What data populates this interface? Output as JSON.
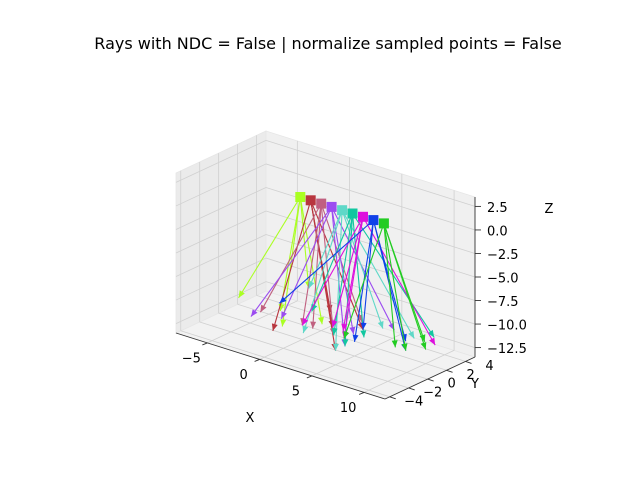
{
  "chart_data": {
    "type": "3d-line",
    "title": "Rays with NDC = False | normalize sampled points = False",
    "xlabel": "X",
    "ylabel": "Y",
    "zlabel": "Z",
    "xlim": [
      -8,
      12
    ],
    "ylim": [
      -4.5,
      5
    ],
    "zlim": [
      -13.5,
      3.5
    ],
    "x_ticks": [
      -5,
      0,
      5,
      10
    ],
    "y_ticks": [
      -4,
      -2,
      0,
      2,
      4
    ],
    "z_ticks": [
      2.5,
      0.0,
      -2.5,
      -5.0,
      -7.5,
      -10.0,
      -12.5
    ],
    "x_tick_labels": [
      "−5",
      "0",
      "5",
      "10"
    ],
    "y_tick_labels": [
      "−4",
      "−2",
      "0",
      "2",
      "4"
    ],
    "z_tick_labels": [
      "2.5",
      "0.0",
      "−2.5",
      "−5.0",
      "−7.5",
      "−10.0",
      "−12.5"
    ],
    "grid": true,
    "cameras": [
      {
        "color": "#aaff22",
        "origin": [
          -2,
          2,
          0
        ],
        "rays": [
          [
            -7,
            1,
            -12
          ],
          [
            -3,
            1,
            -12
          ],
          [
            1,
            1,
            -12
          ],
          [
            -1,
            -1,
            -12
          ],
          [
            -3,
            4,
            -11
          ]
        ]
      },
      {
        "color": "#b8363f",
        "origin": [
          -1,
          2,
          0
        ],
        "rays": [
          [
            -1,
            -2,
            -12
          ],
          [
            4,
            2,
            -12
          ],
          [
            5,
            -2,
            -12
          ],
          [
            0,
            3,
            -12
          ],
          [
            2,
            1,
            -12
          ]
        ]
      },
      {
        "color": "#c06080",
        "origin": [
          0,
          2,
          0
        ],
        "rays": [
          [
            -4,
            0,
            -12
          ],
          [
            1,
            0,
            -12
          ],
          [
            3,
            3,
            -12
          ],
          [
            0,
            0,
            -12
          ],
          [
            3,
            0,
            -12
          ]
        ]
      },
      {
        "color": "#9b4cf0",
        "origin": [
          1,
          2,
          0
        ],
        "rays": [
          [
            -2,
            0,
            -12
          ],
          [
            7,
            2,
            -11
          ],
          [
            4,
            1,
            -12
          ],
          [
            5,
            -1,
            -12
          ],
          [
            -4,
            -1,
            -12
          ]
        ]
      },
      {
        "color": "#5fd8c8",
        "origin": [
          2,
          2,
          0
        ],
        "rays": [
          [
            5,
            -2,
            -12
          ],
          [
            8,
            3,
            -12
          ],
          [
            -3,
            4,
            -11
          ],
          [
            1,
            -1,
            -12
          ],
          [
            5,
            3,
            -12
          ]
        ]
      },
      {
        "color": "#12c7a0",
        "origin": [
          3,
          2,
          0
        ],
        "rays": [
          [
            0,
            1,
            -11
          ],
          [
            9,
            4,
            -12
          ],
          [
            5,
            1,
            -12
          ],
          [
            5,
            -1,
            -12
          ],
          [
            3,
            0,
            -12
          ]
        ]
      },
      {
        "color": "#dd10dd",
        "origin": [
          4,
          2,
          0
        ],
        "rays": [
          [
            0,
            0,
            -12
          ],
          [
            4,
            0,
            -12
          ],
          [
            3,
            1,
            -12
          ],
          [
            10,
            3,
            -12
          ],
          [
            2,
            1,
            -12
          ]
        ]
      },
      {
        "color": "#1040e8",
        "origin": [
          5,
          2,
          0
        ],
        "rays": [
          [
            -4,
            2,
            -12
          ],
          [
            9,
            1,
            -12
          ],
          [
            9,
            1,
            -11
          ],
          [
            4,
            2,
            -12
          ],
          [
            5,
            0,
            -12
          ]
        ]
      },
      {
        "color": "#22cc22",
        "origin": [
          6,
          2,
          0
        ],
        "rays": [
          [
            9,
            3,
            -12
          ],
          [
            9,
            1,
            -12
          ],
          [
            8,
            1,
            -12
          ],
          [
            4,
            0,
            -12
          ],
          [
            10,
            2,
            -12
          ]
        ]
      }
    ]
  }
}
